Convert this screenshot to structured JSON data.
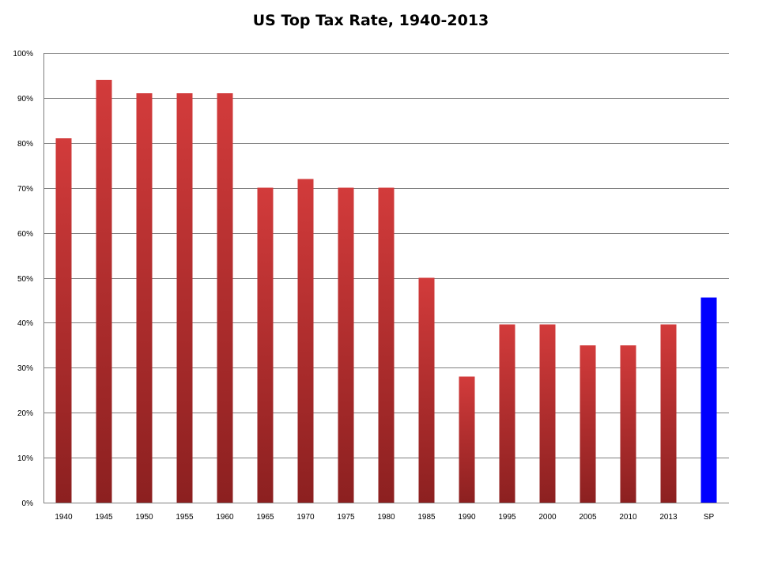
{
  "chart_data": {
    "type": "bar",
    "title": "US Top Tax Rate, 1940-2013",
    "xlabel": "",
    "ylabel": "",
    "categories": [
      "1940",
      "1945",
      "1950",
      "1955",
      "1960",
      "1965",
      "1970",
      "1975",
      "1980",
      "1985",
      "1990",
      "1995",
      "2000",
      "2005",
      "2010",
      "2013",
      "SP"
    ],
    "values": [
      81,
      94,
      91,
      91,
      91,
      70,
      72,
      70,
      70,
      50,
      28,
      39.6,
      39.6,
      35,
      35,
      39.6,
      45.6
    ],
    "ylim": [
      0,
      100
    ],
    "yticks": [
      0,
      10,
      20,
      30,
      40,
      50,
      60,
      70,
      80,
      90,
      100
    ],
    "ytick_labels": [
      "0%",
      "10%",
      "20%",
      "30%",
      "40%",
      "50%",
      "60%",
      "70%",
      "80%",
      "90%",
      "100%"
    ],
    "grid": true,
    "legend": "none",
    "colors": {
      "bar_top": "#d23b3b",
      "bar_bottom": "#8c2020",
      "highlight": "#0000ff",
      "gridline": "#7f7f7f"
    },
    "highlight_category": "SP"
  }
}
